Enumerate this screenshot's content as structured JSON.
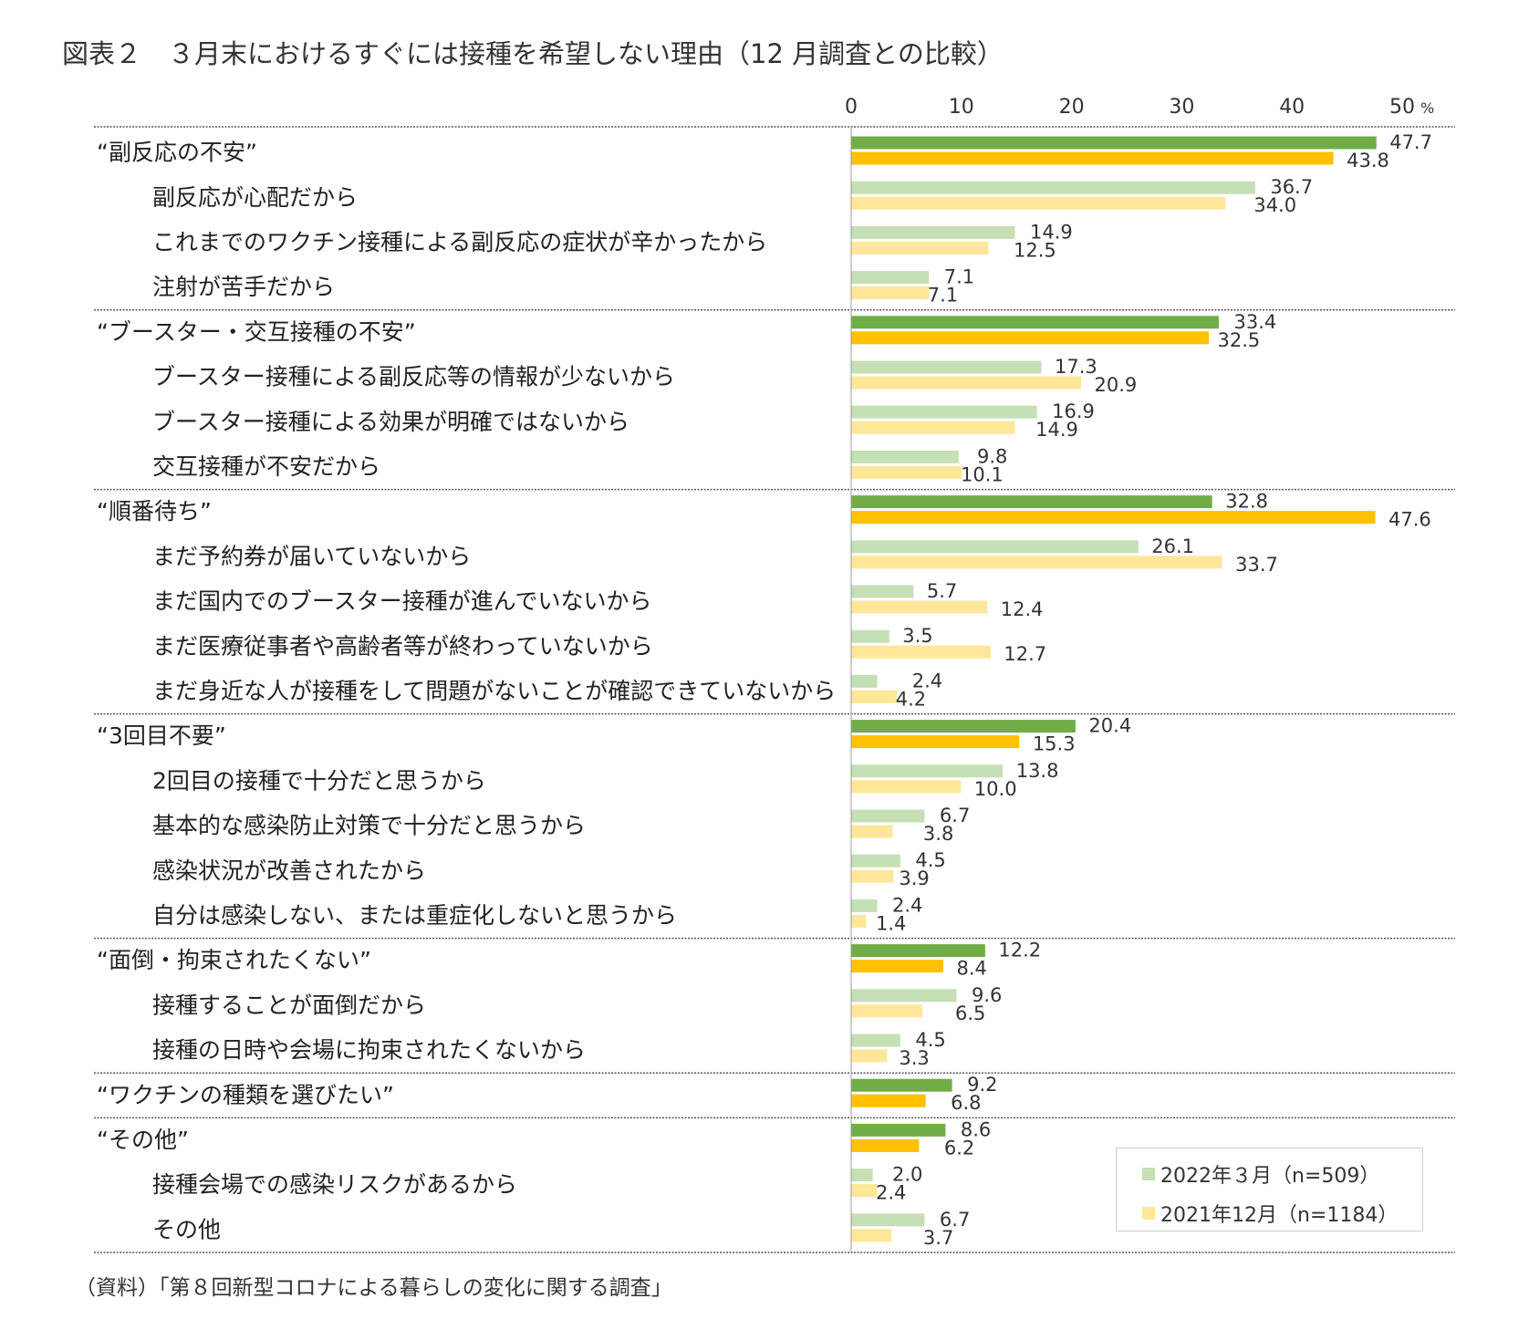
{
  "title": "図表２　３月末におけるすぐには接種を希望しない理由（12 月調査との比較）",
  "source": "（資料）「第８回新型コロナによる暮らしの変化に関する調査」",
  "colors": {
    "mar_group": "#70AD47",
    "dec_group": "#FFC000",
    "mar_item": "#C5E0B4",
    "dec_item": "#FFE699"
  },
  "chart_data": {
    "type": "bar",
    "orientation": "horizontal",
    "title": "図表２　３月末におけるすぐには接種を希望しない理由（12 月調査との比較）",
    "x_ticks": [
      "0",
      "10",
      "20",
      "30",
      "40",
      "50"
    ],
    "x_unit": "%",
    "xlim": [
      0,
      50
    ],
    "series": [
      {
        "name": "2022年３月（n=509）"
      },
      {
        "name": "2021年12月（n=1184）"
      }
    ],
    "categories": [
      {
        "label": "“副反応の不安”",
        "group": true,
        "mar": 47.7,
        "dec": 43.8,
        "mar_label": "47.7",
        "dec_label": "43.8"
      },
      {
        "label": "副反応が心配だから",
        "group": false,
        "mar": 36.7,
        "dec": 34.0,
        "mar_label": "36.7",
        "dec_label": "34.0"
      },
      {
        "label": "これまでのワクチン接種による副反応の症状が辛かったから",
        "group": false,
        "mar": 14.9,
        "dec": 12.5,
        "mar_label": "14.9",
        "dec_label": "12.5"
      },
      {
        "label": "注射が苦手だから",
        "group": false,
        "mar": 7.1,
        "dec": 7.1,
        "mar_label": "7.1",
        "dec_label": "7.1"
      },
      {
        "label": "“ブースター・交互接種の不安”",
        "group": true,
        "mar": 33.4,
        "dec": 32.5,
        "mar_label": "33.4",
        "dec_label": "32.5"
      },
      {
        "label": "ブースター接種による副反応等の情報が少ないから",
        "group": false,
        "mar": 17.3,
        "dec": 20.9,
        "mar_label": "17.3",
        "dec_label": "20.9"
      },
      {
        "label": "ブースター接種による効果が明確ではないから",
        "group": false,
        "mar": 16.9,
        "dec": 14.9,
        "mar_label": "16.9",
        "dec_label": "14.9"
      },
      {
        "label": "交互接種が不安だから",
        "group": false,
        "mar": 9.8,
        "dec": 10.1,
        "mar_label": "9.8",
        "dec_label": "10.1"
      },
      {
        "label": "“順番待ち”",
        "group": true,
        "mar": 32.8,
        "dec": 47.6,
        "mar_label": "32.8",
        "dec_label": "47.6"
      },
      {
        "label": "まだ予約券が届いていないから",
        "group": false,
        "mar": 26.1,
        "dec": 33.7,
        "mar_label": "26.1",
        "dec_label": "33.7"
      },
      {
        "label": "まだ国内でのブースター接種が進んでいないから",
        "group": false,
        "mar": 5.7,
        "dec": 12.4,
        "mar_label": "5.7",
        "dec_label": "12.4"
      },
      {
        "label": "まだ医療従事者や高齢者等が終わっていないから",
        "group": false,
        "mar": 3.5,
        "dec": 12.7,
        "mar_label": "3.5",
        "dec_label": "12.7"
      },
      {
        "label": "まだ身近な人が接種をして問題がないことが確認できていないから",
        "group": false,
        "mar": 2.4,
        "dec": 4.2,
        "mar_label": "2.4",
        "dec_label": "4.2"
      },
      {
        "label": "“3回目不要”",
        "group": true,
        "mar": 20.4,
        "dec": 15.3,
        "mar_label": "20.4",
        "dec_label": "15.3"
      },
      {
        "label": "2回目の接種で十分だと思うから",
        "group": false,
        "mar": 13.8,
        "dec": 10.0,
        "mar_label": "13.8",
        "dec_label": "10.0"
      },
      {
        "label": "基本的な感染防止対策で十分だと思うから",
        "group": false,
        "mar": 6.7,
        "dec": 3.8,
        "mar_label": "6.7",
        "dec_label": "3.8"
      },
      {
        "label": "感染状況が改善されたから",
        "group": false,
        "mar": 4.5,
        "dec": 3.9,
        "mar_label": "4.5",
        "dec_label": "3.9"
      },
      {
        "label": "自分は感染しない、または重症化しないと思うから",
        "group": false,
        "mar": 2.4,
        "dec": 1.4,
        "mar_label": "2.4",
        "dec_label": "1.4"
      },
      {
        "label": "“面倒・拘束されたくない”",
        "group": true,
        "mar": 12.2,
        "dec": 8.4,
        "mar_label": "12.2",
        "dec_label": "8.4"
      },
      {
        "label": "接種することが面倒だから",
        "group": false,
        "mar": 9.6,
        "dec": 6.5,
        "mar_label": "9.6",
        "dec_label": "6.5"
      },
      {
        "label": "接種の日時や会場に拘束されたくないから",
        "group": false,
        "mar": 4.5,
        "dec": 3.3,
        "mar_label": "4.5",
        "dec_label": "3.3"
      },
      {
        "label": "“ワクチンの種類を選びたい”",
        "group": true,
        "mar": 9.2,
        "dec": 6.8,
        "mar_label": "9.2",
        "dec_label": "6.8"
      },
      {
        "label": "“その他”",
        "group": true,
        "mar": 8.6,
        "dec": 6.2,
        "mar_label": "8.6",
        "dec_label": "6.2"
      },
      {
        "label": "接種会場での感染リスクがあるから",
        "group": false,
        "mar": 2.0,
        "dec": 2.4,
        "mar_label": "2.0",
        "dec_label": "2.4"
      },
      {
        "label": "その他",
        "group": false,
        "mar": 6.7,
        "dec": 3.7,
        "mar_label": "6.7",
        "dec_label": "3.7"
      }
    ]
  }
}
